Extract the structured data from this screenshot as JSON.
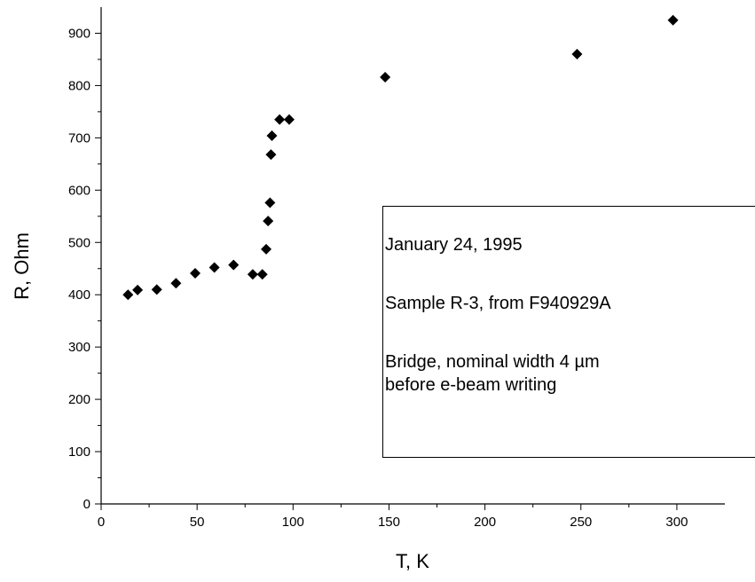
{
  "chart_data": {
    "type": "scatter",
    "xlabel": "T, K",
    "ylabel": "R, Ohm",
    "xlim": [
      0,
      325
    ],
    "ylim": [
      0,
      950
    ],
    "x_ticks": [
      0,
      50,
      100,
      150,
      200,
      250,
      300
    ],
    "y_ticks": [
      0,
      100,
      200,
      300,
      400,
      500,
      600,
      700,
      800,
      900
    ],
    "grid": false,
    "marker": "diamond",
    "marker_color": "#000000",
    "points": [
      {
        "x": 14,
        "y": 400
      },
      {
        "x": 19,
        "y": 409
      },
      {
        "x": 29,
        "y": 410
      },
      {
        "x": 39,
        "y": 422
      },
      {
        "x": 49,
        "y": 441
      },
      {
        "x": 59,
        "y": 452
      },
      {
        "x": 69,
        "y": 457
      },
      {
        "x": 79,
        "y": 439
      },
      {
        "x": 84,
        "y": 439
      },
      {
        "x": 86,
        "y": 487
      },
      {
        "x": 87,
        "y": 541
      },
      {
        "x": 88,
        "y": 576
      },
      {
        "x": 88.5,
        "y": 668
      },
      {
        "x": 89,
        "y": 704
      },
      {
        "x": 93,
        "y": 735
      },
      {
        "x": 98,
        "y": 735
      },
      {
        "x": 148,
        "y": 816
      },
      {
        "x": 248,
        "y": 860
      },
      {
        "x": 298,
        "y": 925
      }
    ],
    "annotation": {
      "lines": [
        "January 24, 1995",
        "Sample R-3, from F940929A",
        "Bridge, nominal width 4 µm",
        "before e-beam writing"
      ]
    }
  }
}
